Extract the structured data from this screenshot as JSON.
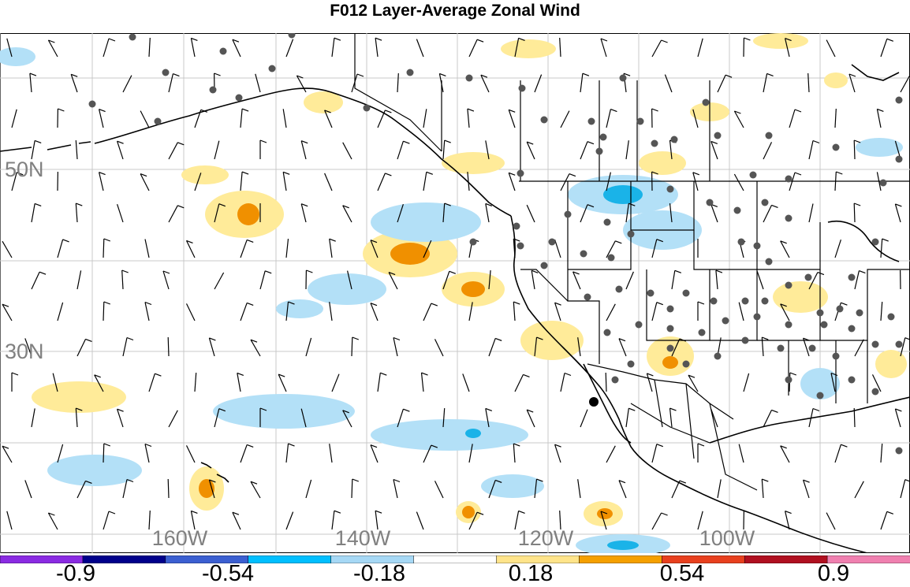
{
  "title": "F012 Layer-Average Zonal Wind",
  "lat_labels": [
    "50N",
    "30N"
  ],
  "lon_labels": [
    "160W",
    "140W",
    "120W",
    "100W"
  ],
  "colorbar": {
    "colors": [
      "#8a2be2",
      "#00008b",
      "#3b5fd1",
      "#00bfff",
      "#a6d8f5",
      "#ffffff",
      "#ffe48a",
      "#f5a000",
      "#e8401e",
      "#b01020",
      "#f080b0"
    ],
    "labels": [
      "-0.9",
      "-0.54",
      "-0.18",
      "0.18",
      "0.54",
      "0.9"
    ]
  },
  "colors": {
    "light_blue": "#b3e0f7",
    "mid_blue": "#1ab3e8",
    "yellow": "#ffeb99",
    "orange": "#f09000",
    "station": "#555555"
  }
}
